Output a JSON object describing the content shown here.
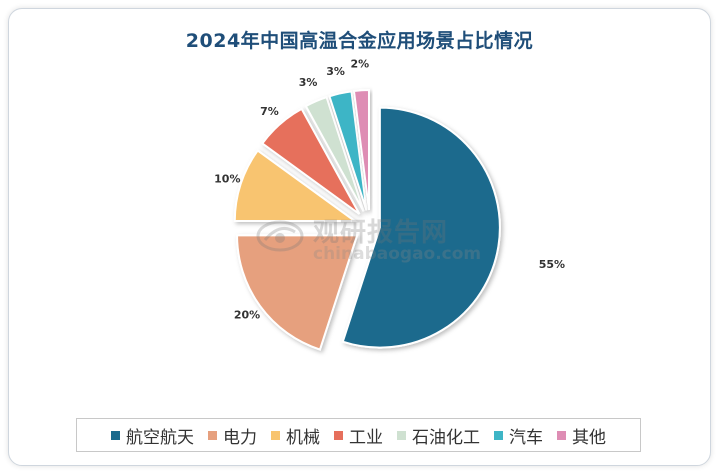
{
  "chart_data": {
    "type": "pie",
    "title": "2024年中国高温合金应用场景占比情况",
    "categories": [
      "航空航天",
      "电力",
      "机械",
      "工业",
      "石油化工",
      "汽车",
      "其他"
    ],
    "values": [
      55,
      20,
      10,
      7,
      3,
      3,
      2
    ],
    "value_labels": [
      "55%",
      "20%",
      "10%",
      "7%",
      "3%",
      "3%",
      "2%"
    ],
    "colors": [
      "#1a6a8d",
      "#e6a07e",
      "#f8c46f",
      "#e66f5c",
      "#cfe1d1",
      "#3eb5c6",
      "#de8db4"
    ],
    "exploded": true,
    "legend_position": "bottom"
  },
  "watermark": {
    "cn": "观研报告网",
    "en": "chinabaogao.com"
  }
}
